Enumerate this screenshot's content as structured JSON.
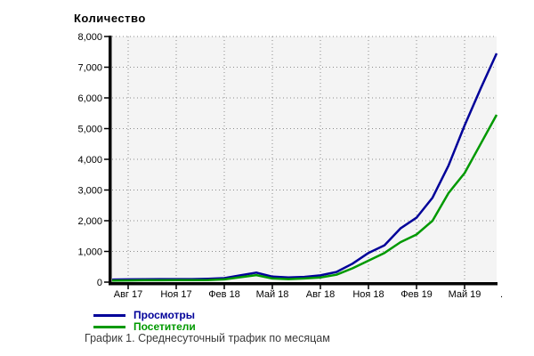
{
  "header": {
    "title": "Количество"
  },
  "legend": {
    "items": [
      {
        "label": "Просмотры",
        "color": "#000099"
      },
      {
        "label": "Посетители",
        "color": "#009900"
      }
    ]
  },
  "caption": "График 1. Среднесуточный трафик по месяцам",
  "chart_data": {
    "type": "line",
    "title": "Количество",
    "xlabel": "",
    "ylabel": "Количество",
    "ylim": [
      0,
      8000
    ],
    "y_gridline_step": 1000,
    "grid": "dotted",
    "plot_bg": "#f4f4f4",
    "gridline_color": "#8c8c8c",
    "axis_color": "#000000",
    "legend_position": "bottom-left",
    "y_tick_labels": [
      "0",
      "1,000",
      "2,000",
      "3,000",
      "4,000",
      "5,000",
      "6,000",
      "7,000",
      "8,000"
    ],
    "x_tick_labels": [
      "Авг 17",
      "Ноя 17",
      "Фев 18",
      "Май 18",
      "Авг 18",
      "Ноя 18",
      "Фев 19",
      "Май 19"
    ],
    "x_tick_month_indices": [
      1,
      4,
      7,
      10,
      13,
      16,
      19,
      22
    ],
    "clipped_tick_label": ".",
    "months": [
      "2017-07",
      "2017-08",
      "2017-09",
      "2017-10",
      "2017-11",
      "2017-12",
      "2018-01",
      "2018-02",
      "2018-03",
      "2018-04",
      "2018-05",
      "2018-06",
      "2018-07",
      "2018-08",
      "2018-09",
      "2018-10",
      "2018-11",
      "2018-12",
      "2019-01",
      "2019-02",
      "2019-03",
      "2019-04",
      "2019-05",
      "2019-06",
      "2019-07"
    ],
    "series": [
      {
        "name": "Просмотры",
        "color": "#000099",
        "values": [
          80,
          90,
          95,
          100,
          100,
          100,
          110,
          130,
          220,
          310,
          180,
          150,
          170,
          220,
          330,
          600,
          950,
          1200,
          1750,
          2100,
          2750,
          3800,
          5100,
          6300,
          7450
        ]
      },
      {
        "name": "Посетители",
        "color": "#009900",
        "values": [
          50,
          55,
          60,
          60,
          65,
          65,
          70,
          90,
          160,
          230,
          120,
          100,
          120,
          150,
          240,
          450,
          700,
          950,
          1300,
          1550,
          2000,
          2900,
          3550,
          4500,
          5450
        ]
      }
    ]
  }
}
